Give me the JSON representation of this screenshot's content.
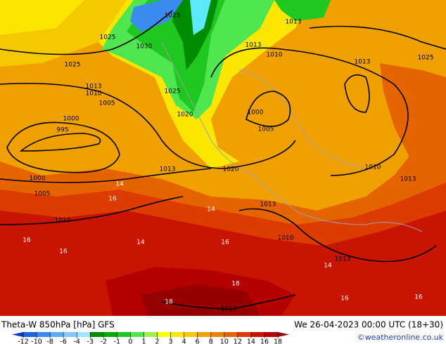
{
  "map": {
    "title": "Theta-W 850hPa [hPa] GFS",
    "valid_time": "We 26-04-2023 00:00 UTC (18+30)",
    "credit": "©weatheronline.co.uk",
    "contour_labels": [
      1025,
      1025,
      1030,
      1013,
      1013,
      1010,
      1025,
      1013,
      1025,
      1013,
      1010,
      1005,
      1000,
      995,
      1025,
      1020,
      1000,
      1005,
      1013,
      1020,
      1010,
      1013,
      1000,
      1005,
      1010,
      1013,
      1010,
      1013,
      1013,
      14,
      16,
      14,
      16,
      16,
      16,
      14,
      18,
      14,
      16,
      16,
      18
    ],
    "colorbar": {
      "ticks": [
        -12,
        -10,
        -8,
        -6,
        -4,
        -3,
        -2,
        -1,
        0,
        1,
        2,
        3,
        4,
        6,
        8,
        10,
        12,
        14,
        16,
        18
      ],
      "colors": [
        "#0a3cb4",
        "#1e64dc",
        "#3c8cf0",
        "#5aaaf5",
        "#82c8fa",
        "#a0e6fa",
        "#008c00",
        "#00aa00",
        "#1ec81e",
        "#50e650",
        "#a0f050",
        "#ffff00",
        "#fae600",
        "#f5c800",
        "#f0a000",
        "#eb8200",
        "#e66400",
        "#dc3c00",
        "#c81400",
        "#b40000",
        "#960000"
      ]
    }
  }
}
